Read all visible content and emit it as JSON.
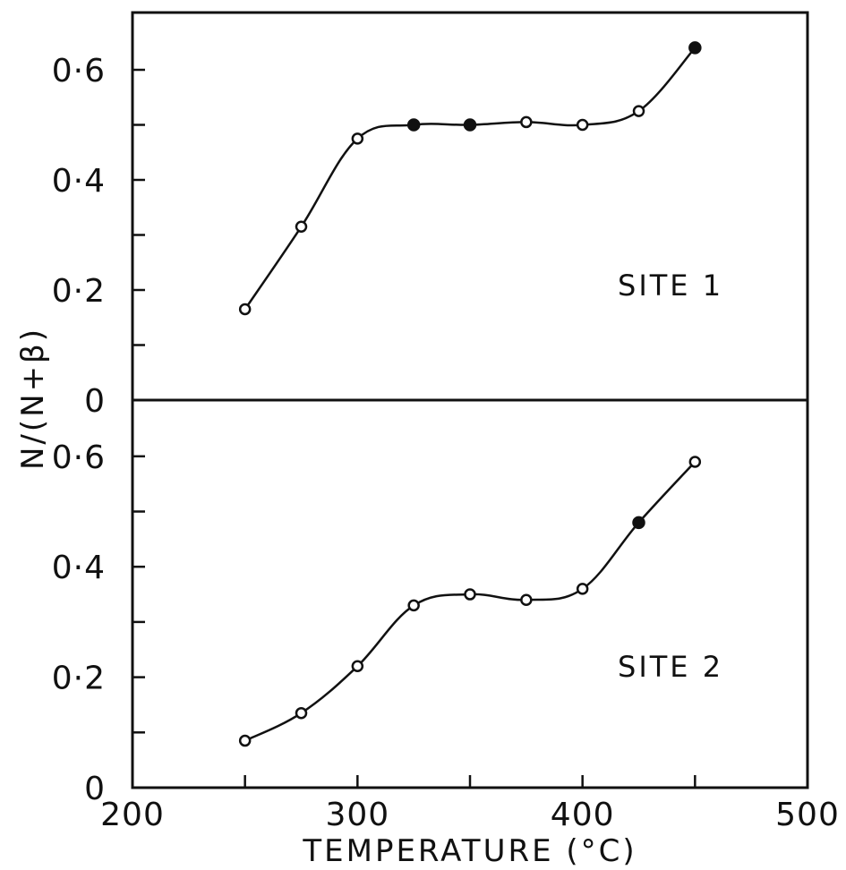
{
  "chart_data": {
    "type": "line",
    "xlabel": "TEMPERATURE (°C)",
    "ylabel": "N/(N+β)",
    "xlim": [
      200,
      500
    ],
    "x_ticks": [
      "200",
      "300",
      "400",
      "500"
    ],
    "ylim": [
      0,
      0.7
    ],
    "y_ticks": [
      "0",
      "0·2",
      "0·4",
      "0·6"
    ],
    "grid": false,
    "panels": [
      {
        "label": "SITE 1",
        "series": [
          {
            "x": [
              250,
              275,
              300,
              325,
              350,
              375,
              400,
              425,
              450
            ],
            "y": [
              0.165,
              0.315,
              0.475,
              0.5,
              0.5,
              0.505,
              0.5,
              0.525,
              0.64
            ],
            "filled": [
              false,
              false,
              false,
              true,
              true,
              false,
              false,
              false,
              true
            ]
          }
        ]
      },
      {
        "label": "SITE 2",
        "series": [
          {
            "x": [
              250,
              275,
              300,
              325,
              350,
              375,
              400,
              425,
              450
            ],
            "y": [
              0.085,
              0.135,
              0.22,
              0.33,
              0.35,
              0.34,
              0.36,
              0.48,
              0.59
            ],
            "filled": [
              false,
              false,
              false,
              false,
              false,
              false,
              false,
              true,
              false
            ]
          }
        ]
      }
    ]
  }
}
